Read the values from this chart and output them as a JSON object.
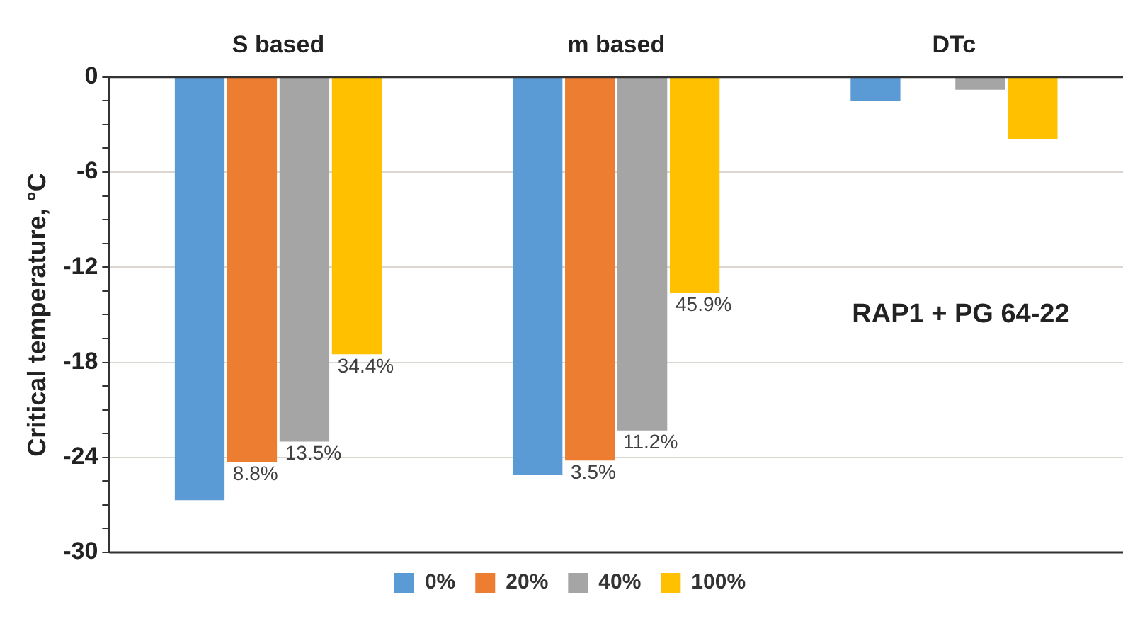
{
  "chart_data": {
    "type": "bar",
    "ylabel": "Critical temperature, °C",
    "categories": [
      "S based",
      "m based",
      "DTc"
    ],
    "series": [
      {
        "name": "0%",
        "color": "#5b9bd5",
        "values": [
          -26.7,
          -25.1,
          -1.5
        ]
      },
      {
        "name": "20%",
        "color": "#ed7d31",
        "values": [
          -24.3,
          -24.2,
          0
        ]
      },
      {
        "name": "40%",
        "color": "#a5a5a5",
        "values": [
          -23.0,
          -22.3,
          -0.8
        ]
      },
      {
        "name": "100%",
        "color": "#ffc000",
        "values": [
          -17.5,
          -13.6,
          -3.9
        ]
      }
    ],
    "ylim": [
      -30,
      0
    ],
    "yticks": [
      -30,
      {
        "value": -28.5,
        "label": null
      },
      {
        "value": -27,
        "label": null
      },
      {
        "value": -25.5,
        "label": null
      },
      -24,
      {
        "value": -22.5,
        "label": null
      },
      {
        "value": -21,
        "label": null
      },
      {
        "value": -19.5,
        "label": null
      },
      -18,
      {
        "value": -16.5,
        "label": null
      },
      {
        "value": -15,
        "label": null
      },
      {
        "value": -13.5,
        "label": null
      },
      -12,
      {
        "value": -10.5,
        "label": null
      },
      {
        "value": -9,
        "label": null
      },
      {
        "value": -7.5,
        "label": null
      },
      -6,
      {
        "value": -4.5,
        "label": null
      },
      {
        "value": -3,
        "label": null
      },
      {
        "value": -1.5,
        "label": null
      },
      0
    ],
    "grid": "y",
    "legend": "bottom",
    "annotations": [
      "RAP1 + PG 64-22",
      {
        "text": "8.8%",
        "x": "S based",
        "y": -24.3
      },
      {
        "text": "13.5%",
        "x": "S based",
        "y": -23.0
      },
      {
        "text": "34.4%",
        "x": "S based",
        "y": -17.5
      },
      {
        "text": "3.5%",
        "x": "m based",
        "y": -24.2
      },
      {
        "text": "11.2%",
        "x": "m based",
        "y": -22.3
      },
      {
        "text": "45.9%",
        "x": "m based",
        "y": -13.6
      }
    ]
  }
}
